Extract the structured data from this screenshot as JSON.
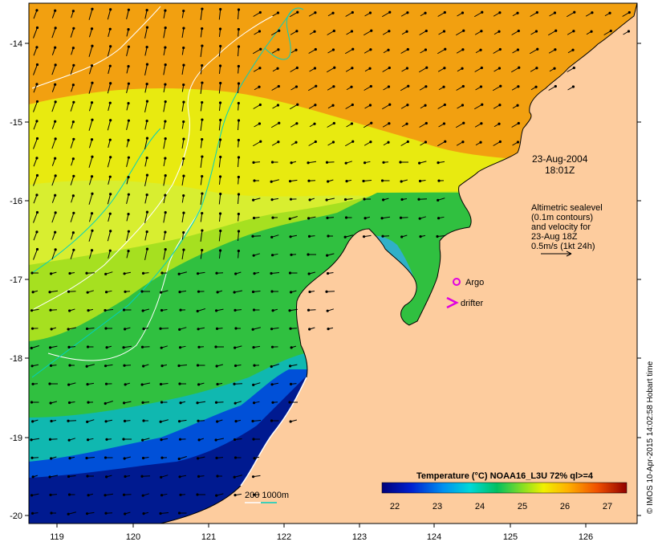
{
  "map": {
    "x_ticks": [
      "119",
      "120",
      "121",
      "122",
      "123",
      "124",
      "125",
      "126"
    ],
    "y_ticks": [
      "-14",
      "-15",
      "-16",
      "-17",
      "-18",
      "-19",
      "-20"
    ]
  },
  "annotations": {
    "date": "23-Aug-2004",
    "time": "18:01Z",
    "altimetry_lines": [
      "Altimetric sealevel",
      "(0.1m contours)",
      "and velocity for",
      "23-Aug 18Z",
      "0.5m/s (1kt 24h)"
    ],
    "argo_label": "Argo",
    "drifter_label": "drifter",
    "depth_label": "200  1000m"
  },
  "colorbar": {
    "title": "Temperature (°C) NOAA16_L3U 72% ql>=4",
    "ticks": [
      "22",
      "23",
      "24",
      "25",
      "26",
      "27"
    ]
  },
  "credit": "© IMOS 10-Apr-2015 14:02:58 Hobart time",
  "colors": {
    "land": "#fdcc9e",
    "argo": "#e000e0",
    "drifter": "#e000e0",
    "contour_200m": "#ffffff",
    "contour_1000m": "#00d0c0"
  }
}
